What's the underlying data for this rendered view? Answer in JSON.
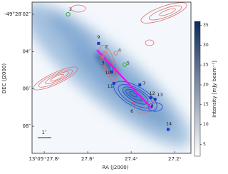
{
  "chart_data": {
    "type": "image",
    "xlabel": "RA (J2000)",
    "ylabel": "DEC (J2000)",
    "xlim": [
      27.856,
      27.125
    ],
    "ylim": [
      1.35,
      9.45
    ],
    "xticks": [
      {
        "value": 27.8,
        "label": "13ʰ05ᵐ27.8ˢ"
      },
      {
        "value": 27.6,
        "label": "27.6ˢ"
      },
      {
        "value": 27.4,
        "label": "27.4ˢ"
      },
      {
        "value": 27.2,
        "label": "27.2ˢ"
      }
    ],
    "yticks": [
      {
        "value": 2,
        "label": "-49°28′02″"
      },
      {
        "value": 4,
        "label": "04″"
      },
      {
        "value": 6,
        "label": "06″"
      },
      {
        "value": 8,
        "label": "08″"
      }
    ],
    "scale_bar": "1″",
    "colorbar": {
      "label": "Intensity [mJy beam⁻¹]",
      "lim": [
        2,
        36
      ],
      "ticks": [
        5,
        10,
        15,
        20,
        25,
        30,
        35
      ],
      "colors": [
        "#ffffff",
        "#0b2a5c"
      ]
    },
    "sources": [
      {
        "label": "1",
        "x": 27.69,
        "y": 2.0,
        "marker": "circle",
        "color": "#44b044"
      },
      {
        "label": "2",
        "x": 27.52,
        "y": 4.04,
        "marker": "circle",
        "color": "#d98080"
      },
      {
        "label": "3",
        "x": 27.53,
        "y": 4.27,
        "marker": "square",
        "color": "#d060a0"
      },
      {
        "label": "4",
        "x": 27.47,
        "y": 4.08,
        "marker": "circle",
        "color": "#d98080"
      },
      {
        "label": "5",
        "x": 27.43,
        "y": 4.7,
        "marker": "circle",
        "color": "#44b044"
      },
      {
        "label": "6",
        "x": 27.39,
        "y": 6.82,
        "marker": "circle",
        "color": "#e05050"
      },
      {
        "label": "7",
        "x": 27.36,
        "y": 5.78,
        "marker": "square",
        "color": "#1c3cc8"
      },
      {
        "label": "8",
        "x": 27.3,
        "y": 6.7,
        "marker": "circle",
        "color": "#d98080"
      },
      {
        "label": "9",
        "x": 27.55,
        "y": 3.56,
        "marker": "square",
        "color": "#1c3cc8"
      },
      {
        "label": "10",
        "x": 27.49,
        "y": 5.09,
        "marker": "square",
        "color": "#1c3cc8"
      },
      {
        "label": "11",
        "x": 27.48,
        "y": 5.7,
        "marker": "square",
        "color": "#1c3cc8"
      },
      {
        "label": "12",
        "x": 27.31,
        "y": 6.47,
        "marker": "square",
        "color": "#1c3cc8"
      },
      {
        "label": "13",
        "x": 27.29,
        "y": 6.55,
        "marker": "square",
        "color": "#1c3cc8"
      },
      {
        "label": "14",
        "x": 27.23,
        "y": 8.17,
        "marker": "square",
        "color": "#1c3cc8"
      }
    ]
  }
}
